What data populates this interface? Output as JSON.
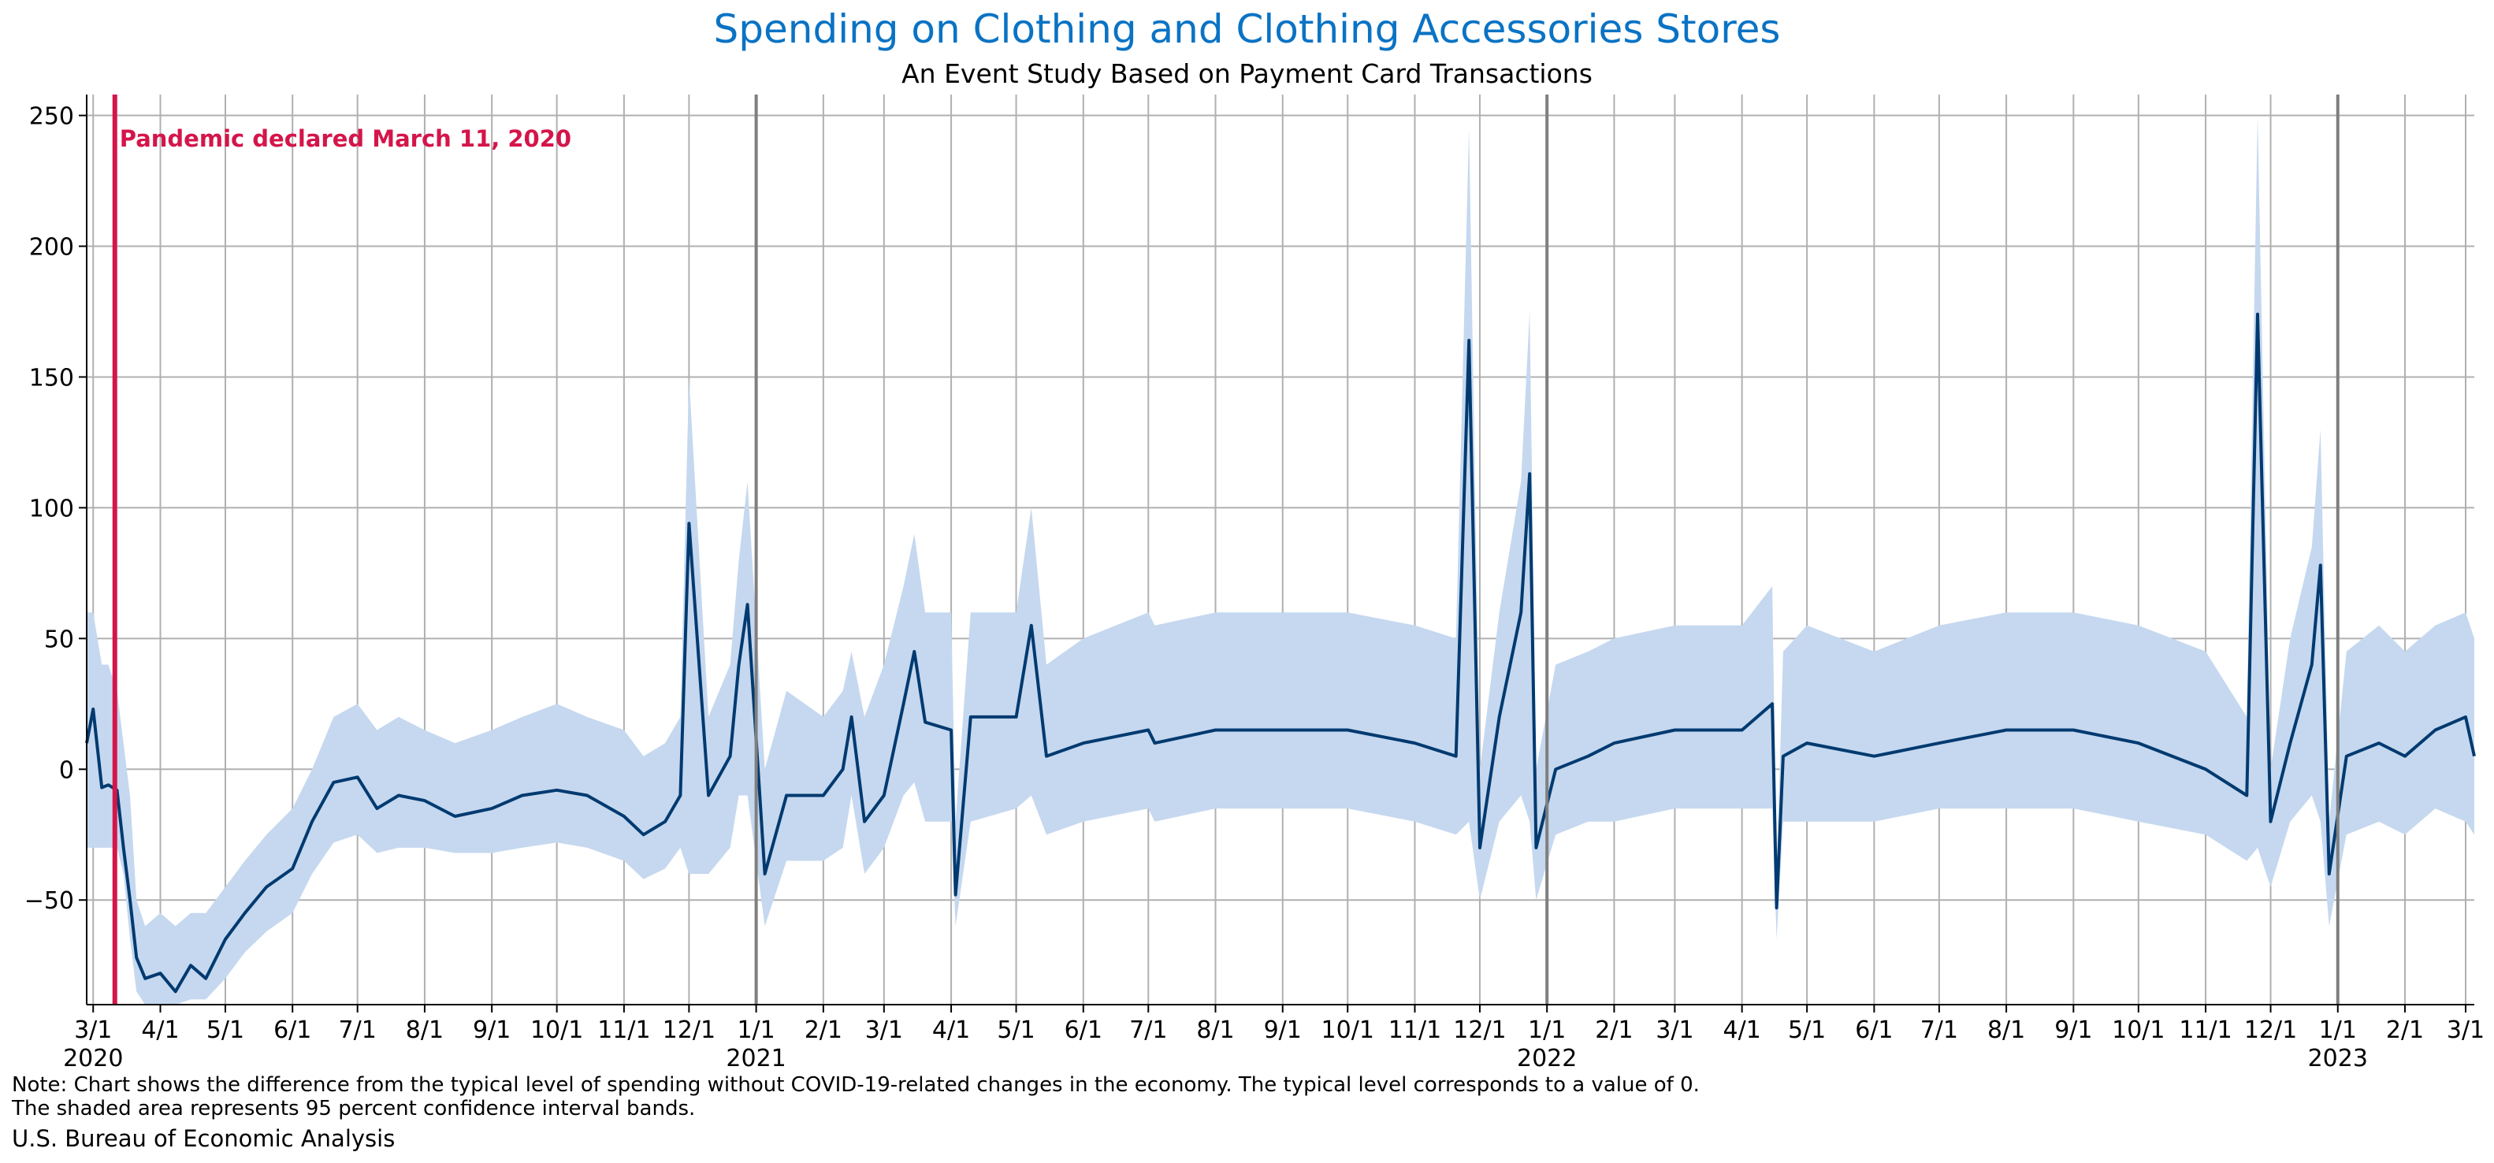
{
  "title": "Spending on Clothing and Clothing Accessories Stores",
  "subtitle": "An Event Study Based on Payment Card Transactions",
  "note_line1": "Note: Chart shows the difference from the typical level of spending without COVID-19-related changes in the economy. The typical level corresponds to a value of 0.",
  "note_line2": "The shaded area represents 95 percent confidence interval bands.",
  "source": "U.S. Bureau of Economic Analysis",
  "colors": {
    "line": "#003a70",
    "band": "#c5d8ef",
    "event": "#d4154a",
    "title": "#0a73c4",
    "grid": "#b0b0b0",
    "year_line": "#7f7f7f"
  },
  "chart_data": {
    "type": "line",
    "title": "Spending on Clothing and Clothing Accessories Stores",
    "subtitle": "An Event Study Based on Payment Card Transactions",
    "x_range": [
      "2020-02-27",
      "2023-03-05"
    ],
    "ylim": [
      -90,
      258
    ],
    "yticks": [
      -50,
      0,
      50,
      100,
      150,
      200,
      250
    ],
    "grid": true,
    "month_ticks": [
      "2020-03-01",
      "2020-04-01",
      "2020-05-01",
      "2020-06-01",
      "2020-07-01",
      "2020-08-01",
      "2020-09-01",
      "2020-10-01",
      "2020-11-01",
      "2020-12-01",
      "2021-01-01",
      "2021-02-01",
      "2021-03-01",
      "2021-04-01",
      "2021-05-01",
      "2021-06-01",
      "2021-07-01",
      "2021-08-01",
      "2021-09-01",
      "2021-10-01",
      "2021-11-01",
      "2021-12-01",
      "2022-01-01",
      "2022-02-01",
      "2022-03-01",
      "2022-04-01",
      "2022-05-01",
      "2022-06-01",
      "2022-07-01",
      "2022-08-01",
      "2022-09-01",
      "2022-10-01",
      "2022-11-01",
      "2022-12-01",
      "2023-01-01",
      "2023-02-01",
      "2023-03-01"
    ],
    "month_labels": [
      "3/1",
      "4/1",
      "5/1",
      "6/1",
      "7/1",
      "8/1",
      "9/1",
      "10/1",
      "11/1",
      "12/1",
      "1/1",
      "2/1",
      "3/1",
      "4/1",
      "5/1",
      "6/1",
      "7/1",
      "8/1",
      "9/1",
      "10/1",
      "11/1",
      "12/1",
      "1/1",
      "2/1",
      "3/1",
      "4/1",
      "5/1",
      "6/1",
      "7/1",
      "8/1",
      "9/1",
      "10/1",
      "11/1",
      "12/1",
      "1/1",
      "2/1",
      "3/1"
    ],
    "year_labels": [
      {
        "date": "2020-03-01",
        "label": "2020"
      },
      {
        "date": "2021-01-01",
        "label": "2021"
      },
      {
        "date": "2022-01-01",
        "label": "2022"
      },
      {
        "date": "2023-01-01",
        "label": "2023"
      }
    ],
    "year_lines": [
      "2021-01-01",
      "2022-01-01",
      "2023-01-01"
    ],
    "event": {
      "date": "2020-03-11",
      "label": "Pandemic declared March 11, 2020"
    },
    "series": [
      {
        "x": [
          "2020-02-27",
          "2020-03-01",
          "2020-03-05",
          "2020-03-08",
          "2020-03-12",
          "2020-03-15",
          "2020-03-18",
          "2020-03-21",
          "2020-03-25",
          "2020-04-01",
          "2020-04-08",
          "2020-04-15",
          "2020-04-22",
          "2020-05-01",
          "2020-05-10",
          "2020-05-20",
          "2020-06-01",
          "2020-06-10",
          "2020-06-20",
          "2020-07-01",
          "2020-07-10",
          "2020-07-20",
          "2020-08-01",
          "2020-08-15",
          "2020-09-01",
          "2020-09-15",
          "2020-10-01",
          "2020-10-15",
          "2020-11-01",
          "2020-11-10",
          "2020-11-20",
          "2020-11-27",
          "2020-12-01",
          "2020-12-10",
          "2020-12-20",
          "2020-12-24",
          "2020-12-28",
          "2021-01-05",
          "2021-01-15",
          "2021-02-01",
          "2021-02-10",
          "2021-02-14",
          "2021-02-20",
          "2021-03-01",
          "2021-03-10",
          "2021-03-15",
          "2021-03-20",
          "2021-04-01",
          "2021-04-03",
          "2021-04-10",
          "2021-05-01",
          "2021-05-08",
          "2021-05-15",
          "2021-06-01",
          "2021-07-01",
          "2021-07-04",
          "2021-08-01",
          "2021-09-01",
          "2021-10-01",
          "2021-11-01",
          "2021-11-20",
          "2021-11-26",
          "2021-12-01",
          "2021-12-10",
          "2021-12-20",
          "2021-12-24",
          "2021-12-27",
          "2022-01-05",
          "2022-01-20",
          "2022-02-01",
          "2022-03-01",
          "2022-04-01",
          "2022-04-15",
          "2022-04-17",
          "2022-04-20",
          "2022-05-01",
          "2022-06-01",
          "2022-07-01",
          "2022-08-01",
          "2022-09-01",
          "2022-10-01",
          "2022-11-01",
          "2022-11-20",
          "2022-11-25",
          "2022-12-01",
          "2022-12-10",
          "2022-12-20",
          "2022-12-24",
          "2022-12-28",
          "2023-01-05",
          "2023-01-20",
          "2023-02-01",
          "2023-02-15",
          "2023-03-01",
          "2023-03-05"
        ],
        "y": [
          10,
          23,
          -7,
          -6,
          -8,
          -30,
          -50,
          -72,
          -80,
          -78,
          -85,
          -75,
          -80,
          -65,
          -55,
          -45,
          -38,
          -20,
          -5,
          -3,
          -15,
          -10,
          -12,
          -18,
          -15,
          -10,
          -8,
          -10,
          -18,
          -25,
          -20,
          -10,
          94,
          -10,
          5,
          40,
          63,
          -40,
          -10,
          -10,
          0,
          20,
          -20,
          -10,
          25,
          45,
          18,
          15,
          -48,
          20,
          20,
          55,
          5,
          10,
          15,
          10,
          15,
          15,
          15,
          10,
          5,
          164,
          -30,
          20,
          60,
          113,
          -30,
          0,
          5,
          10,
          15,
          15,
          25,
          -53,
          5,
          10,
          5,
          10,
          15,
          15,
          10,
          0,
          -10,
          174,
          -20,
          10,
          40,
          78,
          -40,
          5,
          10,
          5,
          15,
          20,
          5
        ],
        "lower": [
          -30,
          -30,
          -30,
          -30,
          -30,
          -40,
          -65,
          -85,
          -90,
          -90,
          -90,
          -88,
          -88,
          -80,
          -70,
          -62,
          -55,
          -40,
          -28,
          -25,
          -32,
          -30,
          -30,
          -32,
          -32,
          -30,
          -28,
          -30,
          -35,
          -42,
          -38,
          -30,
          -40,
          -40,
          -30,
          -10,
          -10,
          -60,
          -35,
          -35,
          -30,
          -10,
          -40,
          -30,
          -10,
          -5,
          -20,
          -20,
          -60,
          -20,
          -15,
          -10,
          -25,
          -20,
          -15,
          -20,
          -15,
          -15,
          -15,
          -20,
          -25,
          -20,
          -50,
          -20,
          -10,
          -20,
          -50,
          -25,
          -20,
          -20,
          -15,
          -15,
          -15,
          -65,
          -20,
          -20,
          -20,
          -15,
          -15,
          -15,
          -20,
          -25,
          -35,
          -30,
          -45,
          -20,
          -10,
          -20,
          -60,
          -25,
          -20,
          -25,
          -15,
          -20,
          -25
        ],
        "upper": [
          60,
          60,
          40,
          40,
          30,
          10,
          -10,
          -50,
          -60,
          -55,
          -60,
          -55,
          -55,
          -45,
          -35,
          -25,
          -15,
          0,
          20,
          25,
          15,
          20,
          15,
          10,
          15,
          20,
          25,
          20,
          15,
          5,
          10,
          20,
          150,
          20,
          40,
          80,
          110,
          0,
          30,
          20,
          30,
          45,
          20,
          40,
          70,
          90,
          60,
          60,
          -20,
          60,
          60,
          100,
          40,
          50,
          60,
          55,
          60,
          60,
          60,
          55,
          50,
          245,
          0,
          60,
          110,
          175,
          0,
          40,
          45,
          50,
          55,
          55,
          70,
          -40,
          45,
          55,
          45,
          55,
          60,
          60,
          55,
          45,
          20,
          250,
          0,
          50,
          85,
          130,
          -20,
          45,
          55,
          45,
          55,
          60,
          50
        ]
      }
    ]
  }
}
